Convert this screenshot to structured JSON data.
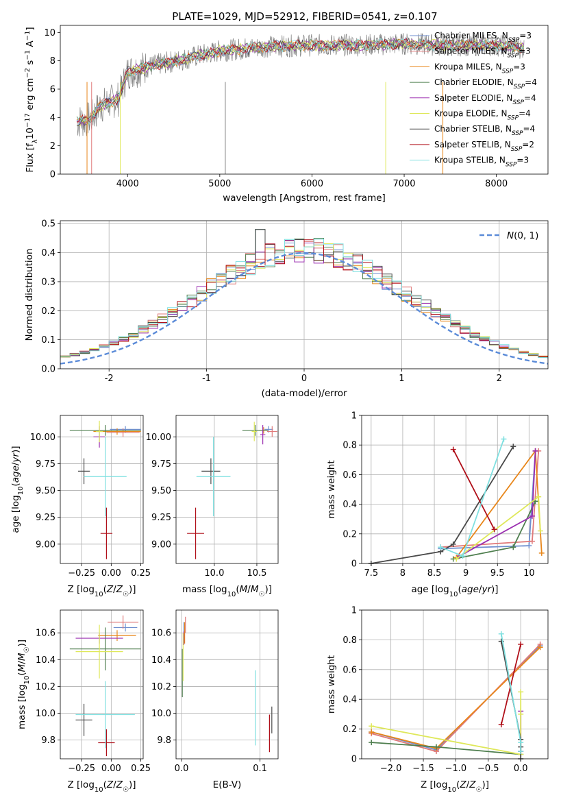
{
  "figure_title": "PLATE=1029, MJD=52912, FIBERID=0541, z=0.107",
  "colors": {
    "Chabrier MILES": "#6f8fcf",
    "Salpeter MILES": "#e07a7a",
    "Kroupa MILES": "#e8861a",
    "Chabrier ELODIE": "#4f7f4f",
    "Salpeter ELODIE": "#9b2fb0",
    "Kroupa ELODIE": "#dfe85a",
    "Chabrier STELIB": "#4a4a4a",
    "Salpeter STELIB": "#b0101a",
    "Kroupa STELIB": "#7fe0e0",
    "normal_curve": "#5b8bd8",
    "spectrum_data": "#808080"
  },
  "chart_data": [
    {
      "id": "spectrum",
      "type": "line",
      "title": "PLATE=1029, MJD=52912, FIBERID=0541, z=0.107",
      "xlabel": "wavelength [Angstrom, rest frame]",
      "ylabel": "Flux [fλ10⁻¹⁷ erg cm⁻² s⁻¹ A⁻¹]",
      "xlim": [
        3270,
        8560
      ],
      "ylim": [
        0,
        10.5
      ],
      "xticks": [
        4000,
        5000,
        6000,
        7000,
        8000
      ],
      "yticks": [
        0,
        2,
        4,
        6,
        8,
        10
      ],
      "grid": false,
      "legend_position": "upper right",
      "legend": [
        {
          "label": "Chabrier MILES, N",
          "sub": "SSP",
          "tail": "=3",
          "key": "Chabrier MILES"
        },
        {
          "label": "Salpeter MILES, N",
          "sub": "SSP",
          "tail": "=3",
          "key": "Salpeter MILES"
        },
        {
          "label": "Kroupa MILES, N",
          "sub": "SSP",
          "tail": "=3",
          "key": "Kroupa MILES"
        },
        {
          "label": "Chabrier ELODIE, N",
          "sub": "SSP",
          "tail": "=4",
          "key": "Chabrier ELODIE"
        },
        {
          "label": "Salpeter ELODIE, N",
          "sub": "SSP",
          "tail": "=4",
          "key": "Salpeter ELODIE"
        },
        {
          "label": "Kroupa ELODIE, N",
          "sub": "SSP",
          "tail": "=4",
          "key": "Kroupa ELODIE"
        },
        {
          "label": "Chabrier STELIB, N",
          "sub": "SSP",
          "tail": "=4",
          "key": "Chabrier STELIB"
        },
        {
          "label": "Salpeter STELIB, N",
          "sub": "SSP",
          "tail": "=2",
          "key": "Salpeter STELIB"
        },
        {
          "label": "Kroupa STELIB, N",
          "sub": "SSP",
          "tail": "=3",
          "key": "Kroupa STELIB"
        }
      ],
      "continuum": {
        "x": [
          3450,
          3600,
          3700,
          3900,
          4000,
          4300,
          4600,
          5000,
          5500,
          6000,
          6500,
          7000,
          7500,
          8000,
          8300
        ],
        "y": [
          3.7,
          3.9,
          4.8,
          5.3,
          7.2,
          7.7,
          8.1,
          8.7,
          9.0,
          9.1,
          9.1,
          9.2,
          9.1,
          9.1,
          8.9
        ]
      }
    },
    {
      "id": "residuals",
      "type": "step",
      "xlabel": "(data-model)/error",
      "ylabel": "Normed distribution",
      "xlim": [
        -2.5,
        2.5
      ],
      "ylim": [
        0,
        0.51
      ],
      "xticks": [
        -2,
        -1,
        0,
        1,
        2
      ],
      "yticks": [
        0.0,
        0.1,
        0.2,
        0.3,
        0.4,
        0.5
      ],
      "grid": true,
      "legend_position": "upper right",
      "legend": [
        {
          "label": "N(0,1)",
          "key": "normal_curve"
        }
      ],
      "bin_width": 0.1,
      "peak_bins": {
        "x": [
          -0.45,
          -0.35,
          0.05
        ],
        "y": [
          0.48,
          0.43,
          0.42
        ]
      }
    },
    {
      "id": "age_vs_Z",
      "type": "errorbar",
      "xlabel": "Z [log10(Z/Z☉)]",
      "ylabel": "age  [log10(age/yr)]",
      "xlim": [
        -0.43,
        0.27
      ],
      "ylim": [
        8.82,
        10.2
      ],
      "xticks": [
        -0.25,
        0,
        0.25
      ],
      "xticklabels": [
        "−0.25",
        "0.00",
        "0.25"
      ],
      "yticks": [
        9.0,
        9.25,
        9.5,
        9.75,
        10.0
      ],
      "yticklabels": [
        "9.00",
        "9.25",
        "9.50",
        "9.75",
        "10.00"
      ],
      "grid": true,
      "points": [
        {
          "key": "Chabrier MILES",
          "x": 0.12,
          "y": 10.07,
          "xerr": 0.13,
          "yerr": 0.03
        },
        {
          "key": "Salpeter MILES",
          "x": 0.1,
          "y": 10.04,
          "xerr": 0.14,
          "yerr": 0.04
        },
        {
          "key": "Kroupa MILES",
          "x": 0.05,
          "y": 10.05,
          "xerr": 0.2,
          "yerr": 0.03
        },
        {
          "key": "Chabrier ELODIE",
          "x": -0.05,
          "y": 10.06,
          "xerr": 0.3,
          "yerr": 0.05
        },
        {
          "key": "Salpeter ELODIE",
          "x": -0.1,
          "y": 10.0,
          "xerr": 0.05,
          "yerr": 0.1
        },
        {
          "key": "Kroupa ELODIE",
          "x": -0.1,
          "y": 10.05,
          "xerr": 0.03,
          "yerr": 0.1
        },
        {
          "key": "Chabrier STELIB",
          "x": -0.23,
          "y": 9.68,
          "xerr": 0.05,
          "yerr": 0.12
        },
        {
          "key": "Salpeter STELIB",
          "x": -0.04,
          "y": 9.1,
          "xerr": 0.05,
          "yerr": 0.24
        },
        {
          "key": "Kroupa STELIB",
          "x": -0.05,
          "y": 9.63,
          "xerr": 0.18,
          "yerr": 0.37
        }
      ]
    },
    {
      "id": "age_vs_mass",
      "type": "errorbar",
      "xlabel": "mass [log10(M/M☉)]",
      "ylabel": "",
      "xlim": [
        9.55,
        10.75
      ],
      "ylim": [
        8.82,
        10.2
      ],
      "xticks": [
        10.0,
        10.5
      ],
      "xticklabels": [
        "10.0",
        "10.5"
      ],
      "yticks": [
        9.0,
        9.25,
        9.5,
        9.75,
        10.0
      ],
      "yticklabels": [
        "9.00",
        "9.25",
        "9.50",
        "9.75",
        "10.00"
      ],
      "grid": true,
      "points": [
        {
          "key": "Chabrier MILES",
          "x": 10.64,
          "y": 10.07,
          "xerr": 0.05,
          "yerr": 0.03
        },
        {
          "key": "Salpeter MILES",
          "x": 10.68,
          "y": 10.05,
          "xerr": 0.06,
          "yerr": 0.05
        },
        {
          "key": "Kroupa MILES",
          "x": 10.58,
          "y": 10.06,
          "xerr": 0.05,
          "yerr": 0.03
        },
        {
          "key": "Chabrier ELODIE",
          "x": 10.48,
          "y": 10.06,
          "xerr": 0.15,
          "yerr": 0.05
        },
        {
          "key": "Salpeter ELODIE",
          "x": 10.57,
          "y": 10.02,
          "xerr": 0.03,
          "yerr": 0.09
        },
        {
          "key": "Kroupa ELODIE",
          "x": 10.47,
          "y": 10.05,
          "xerr": 0.03,
          "yerr": 0.09
        },
        {
          "key": "Chabrier STELIB",
          "x": 9.96,
          "y": 9.68,
          "xerr": 0.11,
          "yerr": 0.12
        },
        {
          "key": "Salpeter STELIB",
          "x": 9.78,
          "y": 9.1,
          "xerr": 0.1,
          "yerr": 0.24
        },
        {
          "key": "Kroupa STELIB",
          "x": 9.99,
          "y": 9.63,
          "xerr": 0.2,
          "yerr": 0.37
        }
      ]
    },
    {
      "id": "weight_vs_age",
      "type": "line",
      "xlabel": "age  [log10(age/yr)]",
      "ylabel": "mass weight",
      "xlim": [
        7.35,
        10.3
      ],
      "ylim": [
        0,
        1.0
      ],
      "xticks": [
        7.5,
        8.0,
        8.5,
        9.0,
        9.5,
        10.0
      ],
      "yticks": [
        0.0,
        0.2,
        0.4,
        0.6,
        0.8,
        1.0
      ],
      "grid": true,
      "series": [
        {
          "key": "Chabrier MILES",
          "x": [
            8.6,
            10.0,
            10.1
          ],
          "y": [
            0.1,
            0.12,
            0.76
          ]
        },
        {
          "key": "Salpeter MILES",
          "x": [
            8.6,
            10.05,
            10.15
          ],
          "y": [
            0.11,
            0.15,
            0.76
          ]
        },
        {
          "key": "Kroupa MILES",
          "x": [
            8.85,
            10.1,
            10.2
          ],
          "y": [
            0.04,
            0.76,
            0.07
          ]
        },
        {
          "key": "Chabrier ELODIE",
          "x": [
            8.8,
            9.75,
            10.1
          ],
          "y": [
            0.03,
            0.11,
            0.42
          ]
        },
        {
          "key": "Salpeter ELODIE",
          "x": [
            8.9,
            10.05,
            10.1
          ],
          "y": [
            0.05,
            0.32,
            0.76
          ]
        },
        {
          "key": "Kroupa ELODIE",
          "x": [
            8.85,
            10.15,
            10.18
          ],
          "y": [
            0.03,
            0.45,
            0.22
          ]
        },
        {
          "key": "Chabrier STELIB",
          "x": [
            7.5,
            8.6,
            8.8,
            9.75
          ],
          "y": [
            0.0,
            0.08,
            0.13,
            0.79
          ]
        },
        {
          "key": "Salpeter STELIB",
          "x": [
            8.8,
            9.45
          ],
          "y": [
            0.77,
            0.23
          ]
        },
        {
          "key": "Kroupa STELIB",
          "x": [
            8.6,
            8.95,
            9.6
          ],
          "y": [
            0.11,
            0.05,
            0.84
          ]
        }
      ]
    },
    {
      "id": "mass_vs_Z",
      "type": "errorbar",
      "xlabel": "Z [log10(Z/Z☉)]",
      "ylabel": "mass [log10(M/M☉)]",
      "xlim": [
        -0.43,
        0.27
      ],
      "ylim": [
        9.66,
        10.77
      ],
      "xticks": [
        -0.25,
        0,
        0.25
      ],
      "xticklabels": [
        "−0.25",
        "0.00",
        "0.25"
      ],
      "yticks": [
        9.8,
        10.0,
        10.2,
        10.4,
        10.6
      ],
      "yticklabels": [
        "9.8",
        "10.0",
        "10.2",
        "10.4",
        "10.6"
      ],
      "grid": true,
      "points": [
        {
          "key": "Chabrier MILES",
          "x": 0.12,
          "y": 10.64,
          "xerr": 0.1,
          "yerr": 0.03
        },
        {
          "key": "Salpeter MILES",
          "x": 0.1,
          "y": 10.68,
          "xerr": 0.13,
          "yerr": 0.05
        },
        {
          "key": "Kroupa MILES",
          "x": 0.05,
          "y": 10.58,
          "xerr": 0.16,
          "yerr": 0.04
        },
        {
          "key": "Chabrier ELODIE",
          "x": -0.05,
          "y": 10.48,
          "xerr": 0.3,
          "yerr": 0.16
        },
        {
          "key": "Salpeter ELODIE",
          "x": -0.1,
          "y": 10.56,
          "xerr": 0.2,
          "yerr": 0.04
        },
        {
          "key": "Kroupa ELODIE",
          "x": -0.1,
          "y": 10.46,
          "xerr": 0.2,
          "yerr": 0.2
        },
        {
          "key": "Chabrier STELIB",
          "x": -0.23,
          "y": 9.95,
          "xerr": 0.07,
          "yerr": 0.12
        },
        {
          "key": "Salpeter STELIB",
          "x": -0.04,
          "y": 9.78,
          "xerr": 0.07,
          "yerr": 0.1
        },
        {
          "key": "Kroupa STELIB",
          "x": -0.05,
          "y": 9.99,
          "xerr": 0.25,
          "yerr": 0.25
        }
      ]
    },
    {
      "id": "mass_vs_EBV",
      "type": "errorbar",
      "xlabel": "E(B-V)",
      "ylabel": "",
      "xlim": [
        -0.007,
        0.123
      ],
      "ylim": [
        9.66,
        10.77
      ],
      "xticks": [
        0.0,
        0.1
      ],
      "xticklabels": [
        "0.0",
        "0.1"
      ],
      "yticks": [
        9.8,
        10.0,
        10.2,
        10.4,
        10.6
      ],
      "yticklabels": [
        "9.8",
        "10.0",
        "10.2",
        "10.4",
        "10.6"
      ],
      "grid": true,
      "points": [
        {
          "key": "Chabrier MILES",
          "x": 0.003,
          "y": 10.64,
          "xerr": 0.0,
          "yerr": 0.04
        },
        {
          "key": "Salpeter MILES",
          "x": 0.005,
          "y": 10.66,
          "xerr": 0.0,
          "yerr": 0.06
        },
        {
          "key": "Kroupa MILES",
          "x": 0.004,
          "y": 10.6,
          "xerr": 0.0,
          "yerr": 0.08
        },
        {
          "key": "Chabrier ELODIE",
          "x": 0.001,
          "y": 10.3,
          "xerr": 0.0,
          "yerr": 0.18
        },
        {
          "key": "Salpeter ELODIE",
          "x": 0.003,
          "y": 10.56,
          "xerr": 0.0,
          "yerr": 0.05
        },
        {
          "key": "Kroupa ELODIE",
          "x": 0.002,
          "y": 10.42,
          "xerr": 0.0,
          "yerr": 0.18
        },
        {
          "key": "Chabrier STELIB",
          "x": 0.115,
          "y": 9.95,
          "xerr": 0.0,
          "yerr": 0.1
        },
        {
          "key": "Salpeter STELIB",
          "x": 0.112,
          "y": 9.85,
          "xerr": 0.0,
          "yerr": 0.14
        },
        {
          "key": "Kroupa STELIB",
          "x": 0.094,
          "y": 10.04,
          "xerr": 0.0,
          "yerr": 0.28
        }
      ]
    },
    {
      "id": "weight_vs_Z",
      "type": "line",
      "xlabel": "Z [log10(Z/Z☉)]",
      "ylabel": "mass weight",
      "xlim": [
        -2.45,
        0.42
      ],
      "ylim": [
        0,
        1.0
      ],
      "xticks": [
        -2.0,
        -1.5,
        -1.0,
        -0.5,
        0.0
      ],
      "xticklabels": [
        "−2.0",
        "−1.5",
        "−1.0",
        "−0.5",
        "0.0"
      ],
      "yticks": [
        0.0,
        0.2,
        0.4,
        0.6,
        0.8,
        1.0
      ],
      "grid": true,
      "series": [
        {
          "key": "Chabrier MILES",
          "x": [
            -2.3,
            -1.3,
            0.3
          ],
          "y": [
            0.18,
            0.06,
            0.76
          ]
        },
        {
          "key": "Salpeter MILES",
          "x": [
            -2.3,
            -1.3,
            0.3
          ],
          "y": [
            0.17,
            0.05,
            0.77
          ]
        },
        {
          "key": "Kroupa MILES",
          "x": [
            -2.3,
            -1.3,
            0.3
          ],
          "y": [
            0.18,
            0.07,
            0.75
          ]
        },
        {
          "key": "Chabrier ELODIE",
          "x": [
            -2.3,
            -1.3,
            0.0
          ],
          "y": [
            0.11,
            0.08,
            0.03
          ]
        },
        {
          "key": "Salpeter ELODIE",
          "x": [
            0.0,
            0.0
          ],
          "y": [
            0.32,
            0.05
          ]
        },
        {
          "key": "Kroupa ELODIE",
          "x": [
            -2.3,
            0.0,
            0.0,
            0.0
          ],
          "y": [
            0.22,
            0.03,
            0.45,
            0.3
          ]
        },
        {
          "key": "Chabrier STELIB",
          "x": [
            -0.3,
            0.0,
            0.0,
            0.0
          ],
          "y": [
            0.79,
            0.13,
            0.08,
            0.0
          ]
        },
        {
          "key": "Salpeter STELIB",
          "x": [
            -0.3,
            0.0
          ],
          "y": [
            0.23,
            0.77
          ]
        },
        {
          "key": "Kroupa STELIB",
          "x": [
            -0.3,
            0.0,
            0.0
          ],
          "y": [
            0.84,
            0.11,
            0.05
          ]
        }
      ]
    }
  ]
}
